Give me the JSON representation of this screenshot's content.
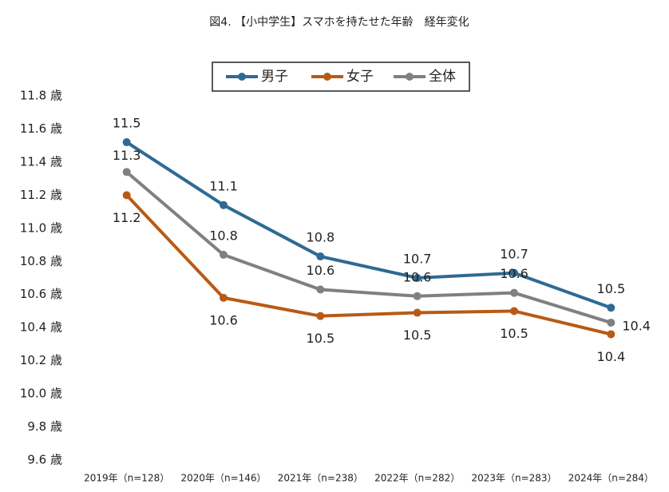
{
  "chart_data": {
    "type": "line",
    "title": "図4. 【小中学生】スマホを持たせた年齢　経年変化",
    "categories": [
      "2019年（n=128）",
      "2020年（n=146）",
      "2021年（n=238）",
      "2022年（n=282）",
      "2023年（n=283）",
      "2024年（n=284）"
    ],
    "series": [
      {
        "name": "男子",
        "color": "#2e6a94",
        "values": [
          11.52,
          11.14,
          10.83,
          10.7,
          10.73,
          10.52
        ],
        "value_labels": [
          "11.5",
          "11.1",
          "10.8",
          "10.7",
          "10.7",
          "10.5"
        ]
      },
      {
        "name": "女子",
        "color": "#b85a14",
        "values": [
          11.2,
          10.58,
          10.47,
          10.49,
          10.5,
          10.36
        ],
        "value_labels": [
          "11.2",
          "10.6",
          "10.5",
          "10.5",
          "10.5",
          "10.4"
        ]
      },
      {
        "name": "全体",
        "color": "#808080",
        "values": [
          11.34,
          10.84,
          10.63,
          10.59,
          10.61,
          10.43
        ],
        "value_labels": [
          "11.3",
          "10.8",
          "10.6",
          "10.6",
          "10.6",
          "10.4"
        ]
      }
    ],
    "ylim": [
      9.6,
      11.8
    ],
    "yticks": [
      {
        "value": 9.6,
        "label": "9.6 歳"
      },
      {
        "value": 9.8,
        "label": "9.8 歳"
      },
      {
        "value": 10.0,
        "label": "10.0 歳"
      },
      {
        "value": 10.2,
        "label": "10.2 歳"
      },
      {
        "value": 10.4,
        "label": "10.4 歳"
      },
      {
        "value": 10.6,
        "label": "10.6 歳"
      },
      {
        "value": 10.8,
        "label": "10.8 歳"
      },
      {
        "value": 11.0,
        "label": "11.0 歳"
      },
      {
        "value": 11.2,
        "label": "11.2 歳"
      },
      {
        "value": 11.4,
        "label": "11.4 歳"
      },
      {
        "value": 11.6,
        "label": "11.6 歳"
      },
      {
        "value": 11.8,
        "label": "11.8 歳"
      }
    ],
    "grid": false,
    "legend": "top"
  }
}
